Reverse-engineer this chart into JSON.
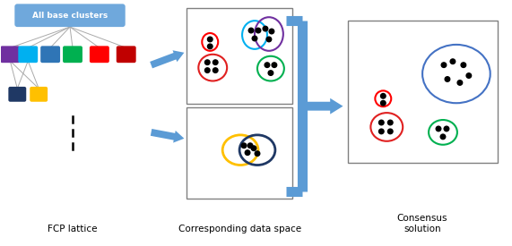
{
  "label_fcp": "FCP lattice",
  "label_data": "Corresponding data space",
  "label_consensus": "Consensus\nsolution",
  "top_box_text": "All base clusters",
  "top_box_color": "#6fa8dc",
  "top_box_text_color": "white",
  "node_colors_row1": [
    "#7030a0",
    "#00b0f0",
    "#2f75b6",
    "#00b050",
    "#ff0000",
    "#c00000"
  ],
  "node_colors_row2": [
    "#1f3864",
    "#ffc000"
  ],
  "arrow_color": "#5b9bd5",
  "line_color": "#aaaaaa",
  "box_border_color": "#808080",
  "dot_color": "black",
  "red_small": "#ff0000",
  "red_large": "#e02020",
  "blue_ellipse": "#00b0f0",
  "purple_ellipse": "#7030a0",
  "green_color": "#00b050",
  "yellow_color": "#ffc000",
  "dark_blue_color": "#1f3864",
  "consensus_blue": "#4472c4",
  "figsize": [
    5.71,
    2.75
  ],
  "dpi": 100
}
